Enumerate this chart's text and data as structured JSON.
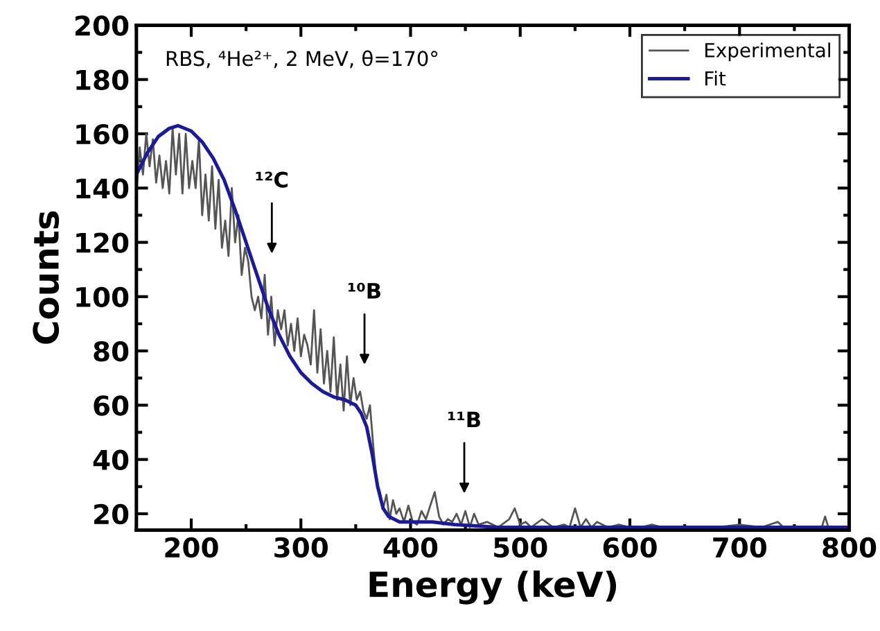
{
  "chart_data": {
    "type": "line",
    "xlabel": "Energy (keV)",
    "ylabel": "Counts",
    "xlim": [
      150,
      800
    ],
    "ylim": [
      14,
      200
    ],
    "xticks": [
      200,
      300,
      400,
      500,
      600,
      700,
      800
    ],
    "yticks": [
      20,
      40,
      60,
      80,
      100,
      120,
      140,
      160,
      180,
      200
    ],
    "legend": "top right",
    "grid": false,
    "series": [
      {
        "name": "Experimental",
        "color": "#555555",
        "x": [
          150,
          153,
          156,
          159,
          162,
          165,
          168,
          171,
          174,
          177,
          180,
          183,
          186,
          189,
          192,
          195,
          198,
          201,
          204,
          207,
          210,
          213,
          216,
          219,
          222,
          225,
          228,
          231,
          234,
          237,
          240,
          243,
          246,
          249,
          252,
          255,
          258,
          261,
          264,
          267,
          270,
          273,
          276,
          279,
          282,
          285,
          288,
          291,
          294,
          297,
          300,
          303,
          306,
          309,
          312,
          315,
          318,
          321,
          324,
          327,
          330,
          333,
          336,
          339,
          342,
          345,
          348,
          351,
          354,
          357,
          360,
          363,
          366,
          369,
          372,
          375,
          378,
          381,
          384,
          387,
          390,
          394,
          398,
          402,
          406,
          410,
          414,
          418,
          422,
          426,
          430,
          434,
          438,
          442,
          446,
          450,
          454,
          458,
          462,
          470,
          480,
          490,
          495,
          500,
          505,
          510,
          520,
          530,
          540,
          545,
          550,
          555,
          560,
          565,
          570,
          580,
          590,
          600,
          610,
          620,
          630,
          650,
          680,
          700,
          720,
          735,
          740,
          760,
          775,
          778,
          781,
          790,
          800
        ],
        "values": [
          138,
          155,
          145,
          160,
          148,
          158,
          142,
          152,
          140,
          150,
          138,
          162,
          145,
          160,
          138,
          160,
          140,
          150,
          140,
          158,
          130,
          145,
          128,
          148,
          125,
          143,
          118,
          128,
          115,
          140,
          120,
          130,
          108,
          118,
          113,
          100,
          95,
          100,
          92,
          108,
          86,
          100,
          82,
          95,
          88,
          95,
          82,
          90,
          80,
          92,
          78,
          86,
          82,
          75,
          95,
          72,
          88,
          68,
          80,
          65,
          85,
          62,
          75,
          58,
          78,
          60,
          70,
          62,
          65,
          58,
          55,
          60,
          45,
          32,
          28,
          22,
          27,
          18,
          25,
          20,
          22,
          17,
          23,
          17,
          16,
          21,
          18,
          23,
          28,
          19,
          16,
          18,
          17,
          20,
          16,
          21,
          15,
          20,
          16,
          17,
          15,
          18,
          22,
          16,
          17,
          15,
          18,
          15,
          16,
          15,
          22,
          15,
          18,
          15,
          17,
          15,
          16,
          15,
          15,
          16,
          15,
          15,
          15,
          16,
          15,
          17,
          15,
          15,
          15,
          19,
          15,
          15,
          15
        ]
      },
      {
        "name": "Fit",
        "color": "#1a1aa0",
        "x": [
          150,
          160,
          170,
          180,
          188,
          200,
          210,
          220,
          230,
          240,
          250,
          260,
          270,
          280,
          290,
          300,
          310,
          320,
          330,
          340,
          350,
          355,
          360,
          365,
          370,
          375,
          380,
          390,
          400,
          420,
          440,
          460,
          480,
          500,
          600,
          700,
          800
        ],
        "values": [
          145,
          153,
          159,
          162,
          163,
          161,
          157,
          151,
          143,
          132,
          120,
          108,
          96,
          86,
          78,
          72,
          68,
          65,
          63,
          62,
          60,
          57,
          52,
          42,
          30,
          22,
          19,
          17,
          17,
          17,
          16,
          15.5,
          15,
          15,
          15,
          15,
          15
        ]
      }
    ],
    "annotations": [
      "RBS, ⁴He²⁺, 2 MeV, θ=170°",
      "¹²C",
      "¹⁰B",
      "¹¹B"
    ]
  }
}
